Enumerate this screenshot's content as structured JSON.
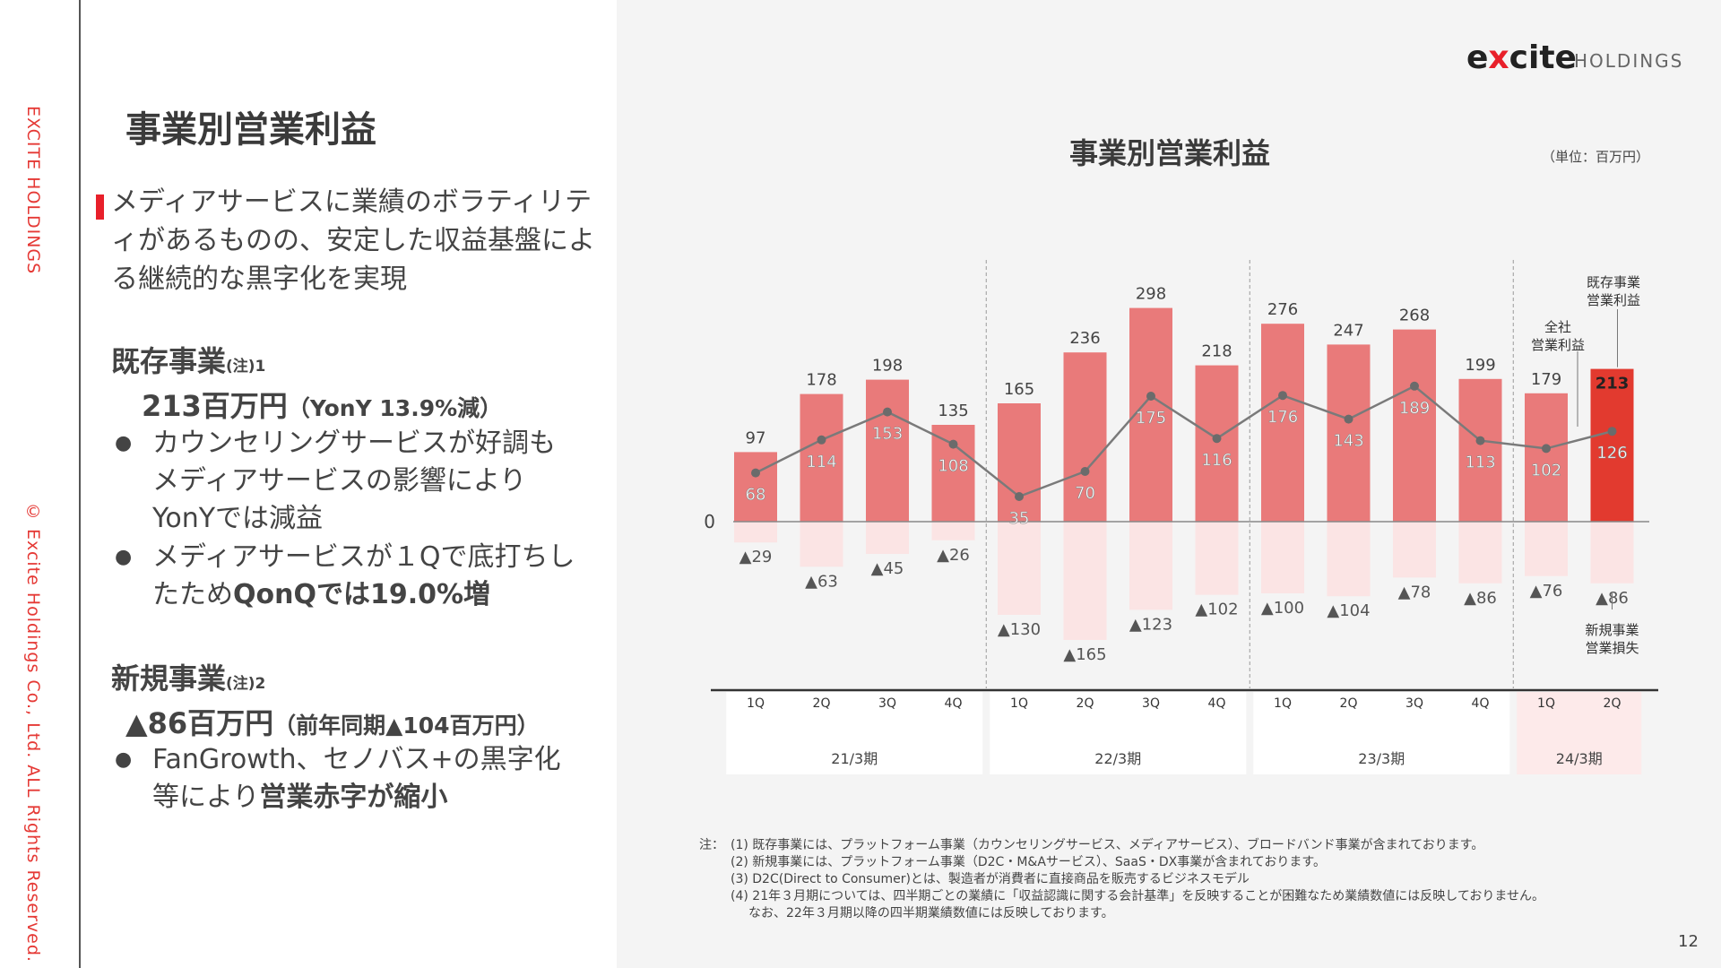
{
  "brand_vertical": "EXCITE HOLDINGS",
  "copyright_vertical": "© Excite Holdings Co., Ltd. ALL Rights Reserved.",
  "page_title": "事業別営業利益",
  "lead": "メディアサービスに業績のボラティリティがあるものの、安定した収益基盤による継続的な黒字化を実現",
  "existing": {
    "heading": "既存事業",
    "note": "(注)1",
    "value": "213百万円",
    "value_sub": "（YonY 13.9%減）",
    "bullet1": "カウンセリングサービスが好調もメディアサービスの影響によりYonYでは減益",
    "bullet2_a": "メディアサービスが１Qで底打ちしたため",
    "bullet2_b": "QonQでは19.0%増"
  },
  "new": {
    "heading": "新規事業",
    "note": "(注)2",
    "value": "▲86百万円",
    "value_sub": "（前年同期▲104百万円）",
    "bullet1_a": "FanGrowth、セノバス+の黒字化等により",
    "bullet1_b": "営業赤字が縮小"
  },
  "logo": {
    "mark_pre": "e",
    "mark_x": "x",
    "mark_post": "cite",
    "holdings": "HOLDINGS"
  },
  "bullet_glyph": "●",
  "colors": {
    "accent": "#e8202a",
    "bar": "#e97a7a",
    "bar_highlight": "#e23a2f",
    "neg_bar": "#fbe4e4",
    "line": "#7a7a7a"
  },
  "chart_data": {
    "type": "bar",
    "title": "事業別営業利益",
    "unit": "（単位：百万円）",
    "zero_label": "0",
    "categories": [
      "1Q",
      "2Q",
      "3Q",
      "4Q",
      "1Q",
      "2Q",
      "3Q",
      "4Q",
      "1Q",
      "2Q",
      "3Q",
      "4Q",
      "1Q",
      "2Q"
    ],
    "periods": [
      {
        "label": "21/3期",
        "quarters": 4
      },
      {
        "label": "22/3期",
        "quarters": 4
      },
      {
        "label": "23/3期",
        "quarters": 4
      },
      {
        "label": "24/3期",
        "quarters": 2
      }
    ],
    "series": [
      {
        "name": "既存事業営業利益",
        "type": "bar",
        "values": [
          97,
          178,
          198,
          135,
          165,
          236,
          298,
          218,
          276,
          247,
          268,
          199,
          179,
          213
        ]
      },
      {
        "name": "全社営業利益",
        "type": "line",
        "values": [
          68,
          114,
          153,
          108,
          35,
          70,
          175,
          116,
          176,
          143,
          189,
          113,
          102,
          126
        ]
      },
      {
        "name": "新規事業営業損失",
        "type": "bar",
        "values": [
          -29,
          -63,
          -45,
          -26,
          -130,
          -165,
          -123,
          -102,
          -100,
          -104,
          -78,
          -86,
          -76,
          -86
        ]
      }
    ],
    "value_labels_existing": [
      "97",
      "178",
      "198",
      "135",
      "165",
      "236",
      "298",
      "218",
      "276",
      "247",
      "268",
      "199",
      "179",
      "213"
    ],
    "value_labels_total": [
      "68",
      "114",
      "153",
      "108",
      "35",
      "70",
      "175",
      "116",
      "176",
      "143",
      "189",
      "113",
      "102",
      "126"
    ],
    "value_labels_new": [
      "▲29",
      "▲63",
      "▲45",
      "▲26",
      "▲130",
      "▲165",
      "▲123",
      "▲102",
      "▲100",
      "▲104",
      "▲78",
      "▲86",
      "▲76",
      "▲86"
    ],
    "annotations": {
      "existing_line1": "既存事業",
      "existing_line2": "営業利益",
      "total_line1": "全社",
      "total_line2": "営業利益",
      "new_line1": "新規事業",
      "new_line2": "営業損失"
    },
    "highlight_index": 13
  },
  "notes": {
    "label": "注：",
    "items": [
      "(1) 既存事業には、プラットフォーム事業（カウンセリングサービス、メディアサービス）、ブロードバンド事業が含まれております。",
      "(2) 新規事業には、プラットフォーム事業（D2C・M&Aサービス）、SaaS・DX事業が含まれております。",
      "(3) D2C(Direct to Consumer)とは、製造者が消費者に直接商品を販売するビジネスモデル",
      "(4) 21年３月期については、四半期ごとの業績に「収益認識に関する会計基準」を反映することが困難なため業績数値には反映しておりません。",
      "なお、22年３月期以降の四半期業績数値には反映しております。"
    ]
  },
  "page_number": "12"
}
